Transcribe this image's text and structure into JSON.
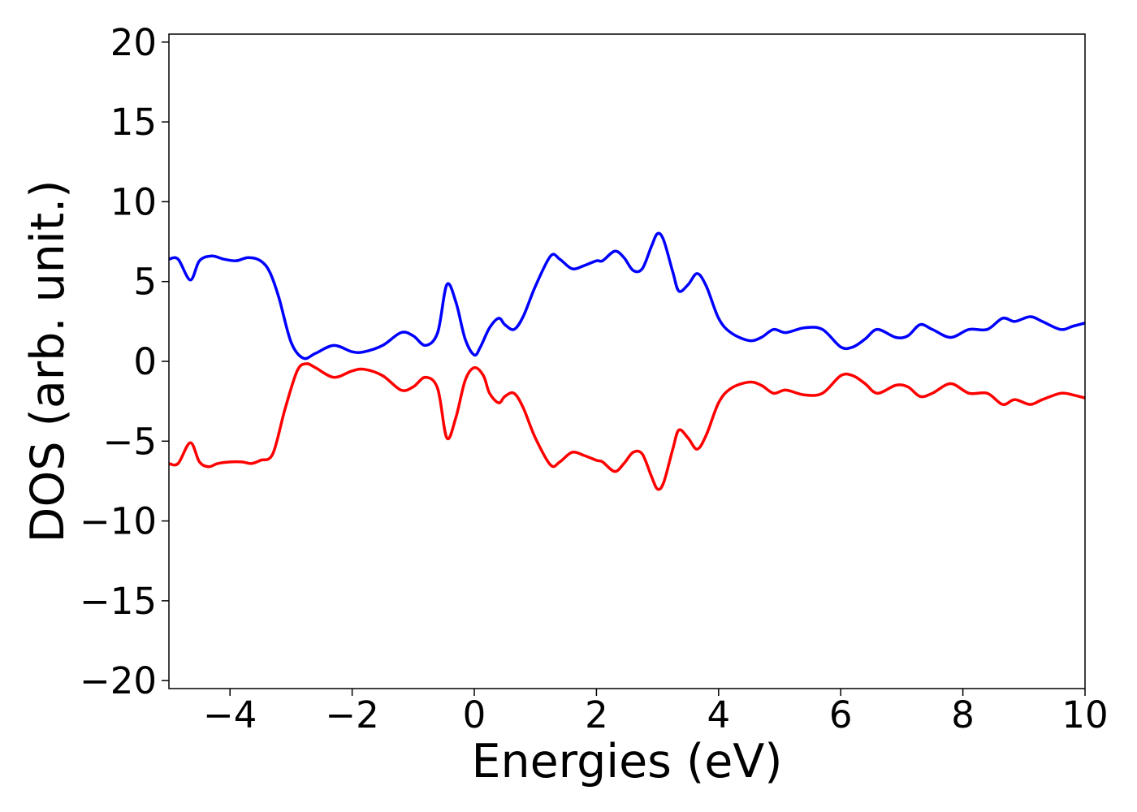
{
  "chart_data": {
    "type": "line",
    "xlabel": "Energies (eV)",
    "ylabel": "DOS (arb. unit.)",
    "xlim": [
      -5,
      10
    ],
    "ylim": [
      -20.5,
      20.5
    ],
    "xticks": [
      -4,
      -2,
      0,
      2,
      4,
      6,
      8,
      10
    ],
    "yticks": [
      -20,
      -15,
      -10,
      -5,
      0,
      5,
      10,
      15,
      20
    ],
    "xtick_labels": [
      "−4",
      "−2",
      "0",
      "2",
      "4",
      "6",
      "8",
      "10"
    ],
    "ytick_labels": [
      "−20",
      "−15",
      "−10",
      "−5",
      "0",
      "5",
      "10",
      "15",
      "20"
    ],
    "grid": false,
    "legend": "none",
    "series": [
      {
        "color": "#0000ff",
        "x": [
          -5.0,
          -4.85,
          -4.65,
          -4.5,
          -4.3,
          -4.1,
          -3.9,
          -3.7,
          -3.5,
          -3.35,
          -3.2,
          -3.0,
          -2.8,
          -2.6,
          -2.3,
          -2.0,
          -1.8,
          -1.5,
          -1.2,
          -1.0,
          -0.8,
          -0.6,
          -0.45,
          -0.3,
          -0.15,
          0.0,
          0.1,
          0.25,
          0.4,
          0.5,
          0.65,
          0.8,
          1.0,
          1.25,
          1.4,
          1.6,
          1.8,
          2.0,
          2.1,
          2.3,
          2.45,
          2.6,
          2.75,
          2.9,
          3.0,
          3.1,
          3.25,
          3.35,
          3.5,
          3.65,
          3.8,
          4.0,
          4.2,
          4.5,
          4.7,
          4.9,
          5.1,
          5.4,
          5.7,
          6.0,
          6.2,
          6.4,
          6.6,
          6.9,
          7.1,
          7.3,
          7.5,
          7.8,
          8.1,
          8.4,
          8.65,
          8.85,
          9.1,
          9.3,
          9.6,
          9.8,
          10.0
        ],
        "y": [
          6.4,
          6.4,
          5.1,
          6.3,
          6.6,
          6.4,
          6.3,
          6.5,
          6.3,
          5.6,
          4.0,
          1.2,
          0.2,
          0.5,
          1.0,
          0.6,
          0.6,
          1.0,
          1.8,
          1.6,
          1.0,
          1.8,
          4.8,
          3.7,
          1.4,
          0.4,
          0.9,
          2.1,
          2.7,
          2.3,
          2.0,
          2.8,
          4.7,
          6.6,
          6.4,
          5.8,
          6.0,
          6.3,
          6.3,
          6.9,
          6.5,
          5.7,
          5.8,
          7.2,
          8.0,
          7.6,
          5.6,
          4.4,
          4.8,
          5.5,
          4.7,
          2.7,
          1.8,
          1.3,
          1.5,
          2.0,
          1.8,
          2.1,
          2.0,
          0.9,
          0.9,
          1.4,
          2.0,
          1.5,
          1.6,
          2.3,
          2.0,
          1.5,
          2.0,
          2.0,
          2.7,
          2.5,
          2.8,
          2.5,
          2.0,
          2.2,
          2.4
        ]
      },
      {
        "color": "#ff0000",
        "x": [
          -5.0,
          -4.85,
          -4.65,
          -4.5,
          -4.35,
          -4.2,
          -4.0,
          -3.8,
          -3.65,
          -3.5,
          -3.3,
          -3.1,
          -2.9,
          -2.75,
          -2.6,
          -2.3,
          -2.0,
          -1.8,
          -1.5,
          -1.2,
          -1.0,
          -0.8,
          -0.6,
          -0.45,
          -0.3,
          -0.15,
          0.0,
          0.15,
          0.25,
          0.4,
          0.5,
          0.65,
          0.8,
          1.0,
          1.25,
          1.4,
          1.6,
          1.8,
          2.0,
          2.1,
          2.3,
          2.45,
          2.6,
          2.75,
          2.9,
          3.0,
          3.1,
          3.25,
          3.35,
          3.5,
          3.65,
          3.8,
          4.0,
          4.2,
          4.5,
          4.7,
          4.9,
          5.1,
          5.4,
          5.7,
          6.0,
          6.2,
          6.4,
          6.6,
          6.9,
          7.1,
          7.3,
          7.5,
          7.8,
          8.1,
          8.4,
          8.65,
          8.85,
          9.1,
          9.3,
          9.6,
          9.8,
          10.0
        ],
        "y": [
          -6.4,
          -6.4,
          -5.1,
          -6.3,
          -6.6,
          -6.4,
          -6.3,
          -6.3,
          -6.4,
          -6.2,
          -5.8,
          -3.0,
          -0.6,
          -0.15,
          -0.4,
          -1.0,
          -0.6,
          -0.5,
          -0.9,
          -1.8,
          -1.6,
          -1.0,
          -1.7,
          -4.8,
          -3.5,
          -1.2,
          -0.4,
          -0.9,
          -2.0,
          -2.6,
          -2.2,
          -2.0,
          -2.9,
          -4.8,
          -6.5,
          -6.3,
          -5.7,
          -5.9,
          -6.2,
          -6.3,
          -6.9,
          -6.4,
          -5.7,
          -5.8,
          -7.2,
          -8.0,
          -7.6,
          -5.5,
          -4.3,
          -4.8,
          -5.5,
          -4.6,
          -2.6,
          -1.7,
          -1.3,
          -1.5,
          -2.0,
          -1.8,
          -2.1,
          -2.0,
          -0.9,
          -0.9,
          -1.4,
          -2.0,
          -1.5,
          -1.6,
          -2.2,
          -2.0,
          -1.4,
          -2.0,
          -2.0,
          -2.7,
          -2.4,
          -2.7,
          -2.4,
          -2.0,
          -2.1,
          -2.3
        ]
      }
    ]
  }
}
